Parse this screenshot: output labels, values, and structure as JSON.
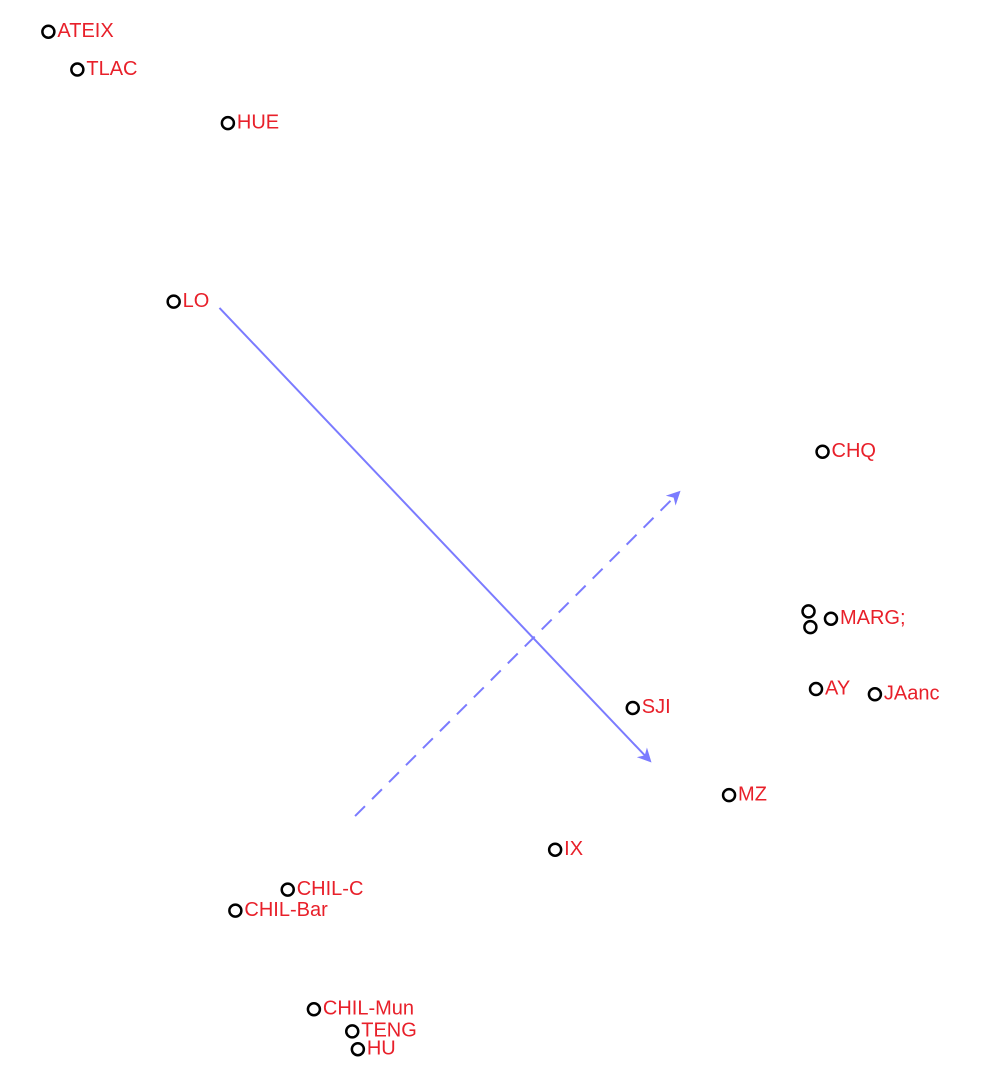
{
  "chart_data": {
    "type": "scatter",
    "title": "",
    "xlabel": "",
    "ylabel": "",
    "grid": false,
    "xlim": [
      0,
      100
    ],
    "ylim": [
      0,
      100
    ],
    "points": [
      {
        "label": "ATEIX",
        "x": 2.5,
        "y": 98.5
      },
      {
        "label": "TLAC",
        "x": 5.6,
        "y": 94.9
      },
      {
        "label": "HUE",
        "x": 21.7,
        "y": 89.8
      },
      {
        "label": "LO",
        "x": 15.9,
        "y": 72.8
      },
      {
        "label": "CHQ",
        "x": 85.3,
        "y": 58.5
      },
      {
        "label": "",
        "x": 83.8,
        "y": 43.3
      },
      {
        "label": "",
        "x": 84.0,
        "y": 41.8
      },
      {
        "label": "MARG;",
        "x": 86.2,
        "y": 42.6
      },
      {
        "label": "AY",
        "x": 84.6,
        "y": 35.9
      },
      {
        "label": "JAanc",
        "x": 90.9,
        "y": 35.4
      },
      {
        "label": "SJI",
        "x": 65.0,
        "y": 34.1
      },
      {
        "label": "MZ",
        "x": 75.3,
        "y": 25.8
      },
      {
        "label": "IX",
        "x": 56.7,
        "y": 20.6
      },
      {
        "label": "CHIL-C",
        "x": 28.1,
        "y": 16.8
      },
      {
        "label": "CHIL-Bar",
        "x": 22.5,
        "y": 14.8
      },
      {
        "label": "CHIL-Mun",
        "x": 30.9,
        "y": 5.4
      },
      {
        "label": "TENG",
        "x": 35.0,
        "y": 3.3
      },
      {
        "label": "HU",
        "x": 35.6,
        "y": 1.6
      }
    ],
    "vectors": [
      {
        "style": "solid",
        "from": [
          20.8,
          72.2
        ],
        "to": [
          66.8,
          29.1
        ]
      },
      {
        "style": "dashed",
        "from": [
          35.3,
          23.8
        ],
        "to": [
          69.9,
          54.6
        ]
      }
    ],
    "colors": {
      "point": "#000000",
      "label": "#e8202a",
      "vector": "#7b7bff"
    }
  }
}
